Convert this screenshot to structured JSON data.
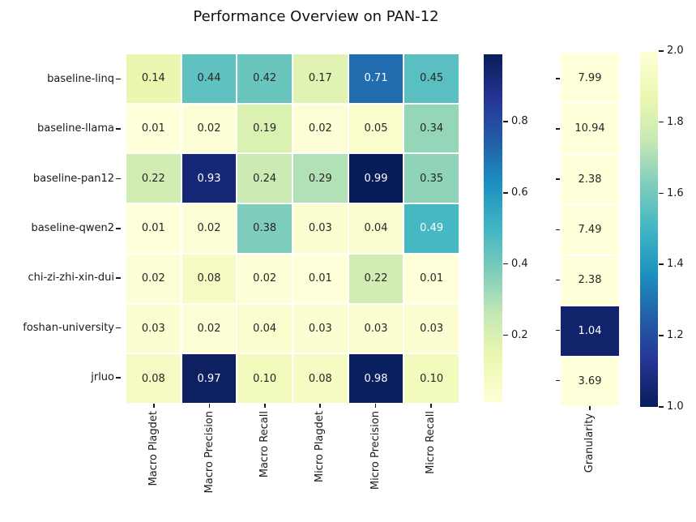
{
  "figure": {
    "background": "#ffffff"
  },
  "chart_data": {
    "type": "heatmap",
    "title": "Performance Overview on PAN-12",
    "rows": [
      "baseline-linq",
      "baseline-llama",
      "baseline-pan12",
      "baseline-qwen2",
      "chi-zi-zhi-xin-dui",
      "foshan-university",
      "jrluo"
    ],
    "panels": [
      {
        "name": "metrics",
        "columns": [
          "Macro Plagdet",
          "Macro Precision",
          "Macro Recall",
          "Micro Plagdet",
          "Micro Precision",
          "Micro Recall"
        ],
        "values": [
          [
            0.14,
            0.44,
            0.42,
            0.17,
            0.71,
            0.45
          ],
          [
            0.01,
            0.02,
            0.19,
            0.02,
            0.05,
            0.34
          ],
          [
            0.22,
            0.93,
            0.24,
            0.29,
            0.99,
            0.35
          ],
          [
            0.01,
            0.02,
            0.38,
            0.03,
            0.04,
            0.49
          ],
          [
            0.02,
            0.08,
            0.02,
            0.01,
            0.22,
            0.01
          ],
          [
            0.03,
            0.02,
            0.04,
            0.03,
            0.03,
            0.03
          ],
          [
            0.08,
            0.97,
            0.1,
            0.08,
            0.98,
            0.1
          ]
        ],
        "colormap": "YlGnBu",
        "reversed": false,
        "vmin": 0.01,
        "vmax": 0.99,
        "colorbar_ticks": [
          0.8,
          0.6,
          0.4,
          0.2
        ],
        "value_decimals": 2,
        "tick_decimals": 1
      },
      {
        "name": "granularity",
        "columns": [
          "Granularity"
        ],
        "values": [
          [
            7.99
          ],
          [
            10.94
          ],
          [
            2.38
          ],
          [
            7.49
          ],
          [
            2.38
          ],
          [
            1.04
          ],
          [
            3.69
          ]
        ],
        "colormap": "YlGnBu_r",
        "reversed": true,
        "vmin": 1.0,
        "vmax": 2.0,
        "colorbar_ticks": [
          2.0,
          1.8,
          1.6,
          1.4,
          1.2,
          1.0
        ],
        "value_decimals": 2,
        "tick_decimals": 1
      }
    ],
    "colormap_stops": [
      "#ffffd9",
      "#edf8b1",
      "#c7e9b4",
      "#7fcdbb",
      "#41b6c4",
      "#1d91c0",
      "#225ea8",
      "#253494",
      "#081d58"
    ],
    "cell_text_dark": "#262626",
    "cell_text_light": "#ffffff",
    "grid": false,
    "legend_position": "right"
  }
}
